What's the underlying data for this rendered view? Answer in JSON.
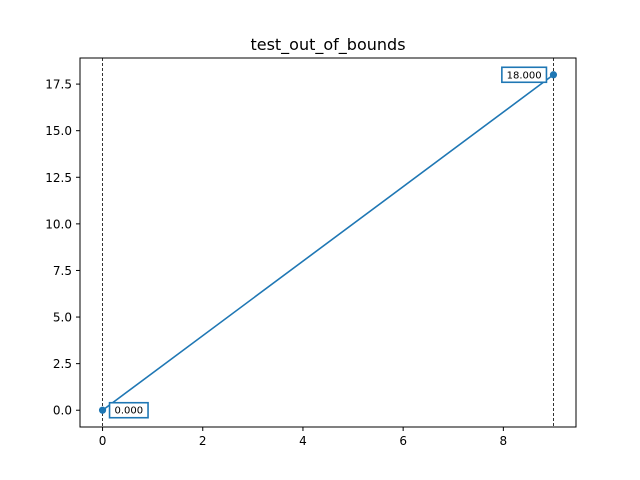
{
  "chart_data": {
    "type": "line",
    "title": "test_out_of_bounds",
    "xlabel": "",
    "ylabel": "",
    "xlim": [
      -0.45,
      9.45
    ],
    "ylim": [
      -0.9,
      18.9
    ],
    "grid": false,
    "legend": "none",
    "x_ticks": [
      0,
      2,
      4,
      6,
      8
    ],
    "x_tick_labels": [
      "0",
      "2",
      "4",
      "6",
      "8"
    ],
    "y_ticks": [
      0,
      2.5,
      5,
      7.5,
      10,
      12.5,
      15,
      17.5
    ],
    "y_tick_labels": [
      "0.0",
      "2.5",
      "5.0",
      "7.5",
      "10.0",
      "12.5",
      "15.0",
      "17.5"
    ],
    "series": [
      {
        "x": [
          0,
          9
        ],
        "y": [
          0,
          18
        ],
        "color": "#1f77b4",
        "markers": "endpoints"
      }
    ],
    "vlines": [
      {
        "x": 0,
        "style": "dashed",
        "color": "#000000"
      },
      {
        "x": 9,
        "style": "dashed",
        "color": "#000000"
      }
    ],
    "annotations": [
      {
        "text": "0.000",
        "x": 0,
        "y": 0,
        "side": "right"
      },
      {
        "text": "18.000",
        "x": 9,
        "y": 18,
        "side": "left"
      }
    ],
    "colors": {
      "line": "#1f77b4",
      "annotation_border": "#1f77b4",
      "axes": "#000000"
    }
  }
}
